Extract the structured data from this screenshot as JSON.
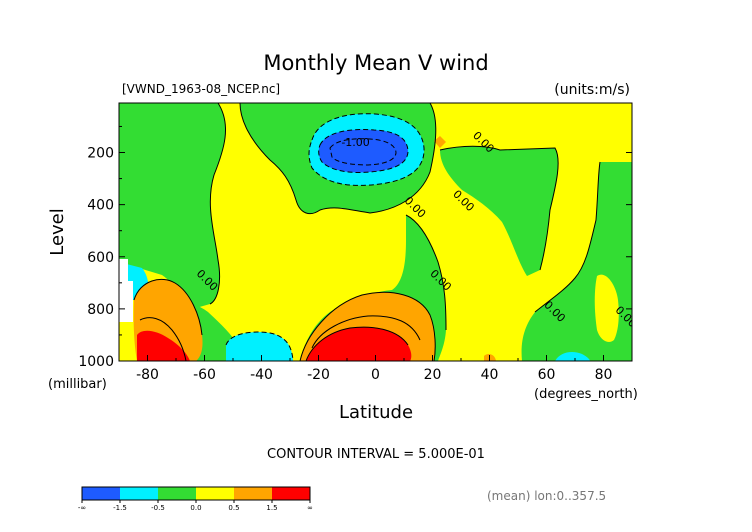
{
  "chart_data": {
    "type": "contour",
    "title": "Monthly Mean V wind",
    "file_label": "[VWND_1963-08_NCEP.nc]",
    "units_label": "(units:m/s)",
    "xlabel": "Latitude",
    "x_unit": "(degrees_north)",
    "ylabel": "Level",
    "y_unit": "(millibar)",
    "xlim": [
      -90,
      90
    ],
    "ylim": [
      1000,
      10
    ],
    "y_inverted": true,
    "x_ticks": [
      -80,
      -60,
      -40,
      -20,
      0,
      20,
      40,
      60,
      80
    ],
    "y_ticks": [
      200,
      400,
      600,
      800,
      1000
    ],
    "contour_interval_text": "CONTOUR INTERVAL = 5.000E-01",
    "footer_text": "(mean) lon:0..357.5",
    "contour_labels": [
      {
        "text": "-1.00",
        "lat": -7,
        "level": 175
      },
      {
        "text": "0.00",
        "lat": 37,
        "level": 170
      },
      {
        "text": "0.00",
        "lat": 13,
        "level": 420
      },
      {
        "text": "0.00",
        "lat": 30,
        "level": 395
      },
      {
        "text": "0.00",
        "lat": -60,
        "level": 700
      },
      {
        "text": "0.00",
        "lat": 22,
        "level": 700
      },
      {
        "text": "0.00",
        "lat": 62,
        "level": 820
      },
      {
        "text": "0.00",
        "lat": 87,
        "level": 840
      }
    ],
    "colorbar": {
      "bins": [
        {
          "range": "< -1.5",
          "color": "#1e5bff"
        },
        {
          "range": "-1.5 to -0.5",
          "color": "#00f0ff"
        },
        {
          "range": "-0.5 to 0.0",
          "color": "#33dd33"
        },
        {
          "range": "0.0 to 0.5",
          "color": "#ffff00"
        },
        {
          "range": "0.5 to 1.5",
          "color": "#ffa500"
        },
        {
          "range": "> 1.5",
          "color": "#ff0000"
        }
      ],
      "tick_labels": [
        "-∞",
        "-1.5",
        "-0.5",
        "0.0",
        "0.5",
        "1.5",
        "∞"
      ]
    },
    "palette": {
      "yellow": "#ffff00",
      "green": "#33dd33",
      "cyan": "#00f0ff",
      "blue": "#1e5bff",
      "orange": "#ffa500",
      "red": "#ff0000"
    },
    "field_regions": [
      {
        "kind": "negative",
        "level": "< -1.5",
        "center_lat": -6,
        "center_level": 170,
        "lat_span": [
          -22,
          12
        ],
        "level_span": [
          110,
          250
        ]
      },
      {
        "kind": "positive",
        "level": "> 1.5",
        "center_lat": -2,
        "center_level": 960,
        "lat_span": [
          -22,
          12
        ],
        "level_span": [
          870,
          1000
        ]
      },
      {
        "kind": "positive",
        "level": "> 1.5",
        "center_lat": -78,
        "center_level": 960,
        "lat_span": [
          -84,
          -68
        ],
        "level_span": [
          890,
          1000
        ]
      },
      {
        "kind": "negative",
        "level": "-1.5 to -0.5",
        "center_lat": -44,
        "center_level": 955,
        "lat_span": [
          -52,
          -30
        ],
        "level_span": [
          910,
          1000
        ]
      }
    ]
  }
}
